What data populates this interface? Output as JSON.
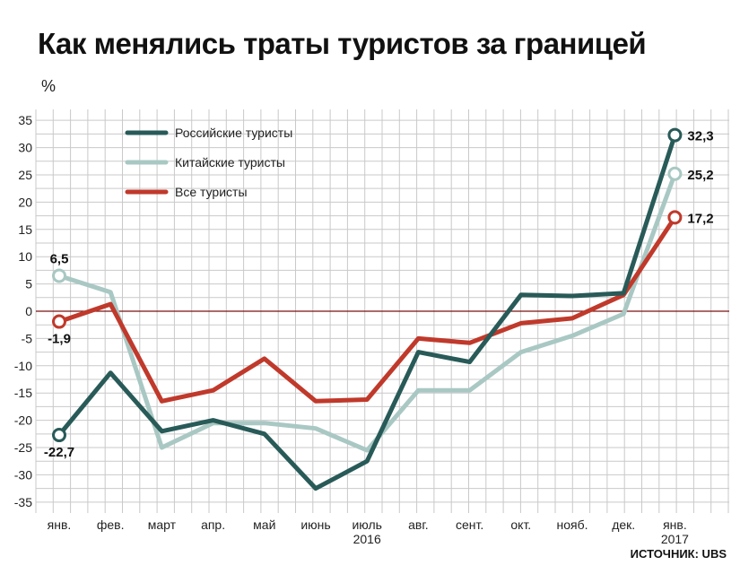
{
  "title": "Как менялись траты туристов за границей",
  "unit": "%",
  "source": "ИСТОЧНИК: UBS",
  "chart_data": {
    "type": "line",
    "ylim": [
      -37,
      37
    ],
    "yticks": [
      35,
      30,
      25,
      20,
      15,
      10,
      5,
      0,
      -5,
      -10,
      -15,
      -20,
      -25,
      -30,
      -35
    ],
    "categories": [
      "янв.",
      "фев.",
      "март",
      "апр.",
      "май",
      "июнь",
      "июль",
      "авг.",
      "сент.",
      "окт.",
      "нояб.",
      "дек.",
      "янв."
    ],
    "year_labels": [
      {
        "index": 6,
        "text": "2016"
      },
      {
        "index": 12,
        "text": "2017"
      }
    ],
    "grid": true,
    "legend_position": "top-left",
    "series": [
      {
        "name": "Российские туристы",
        "color": "#285a58",
        "values": [
          -22.7,
          -11.3,
          -22.0,
          -20.0,
          -22.5,
          -32.5,
          -27.5,
          -7.5,
          -9.3,
          3.0,
          2.8,
          3.3,
          32.3
        ]
      },
      {
        "name": "Китайские туристы",
        "color": "#a9c8c3",
        "values": [
          6.5,
          3.5,
          -25.0,
          -20.5,
          -20.5,
          -21.5,
          -25.5,
          -14.5,
          -14.5,
          -7.5,
          -4.5,
          -0.5,
          25.2
        ]
      },
      {
        "name": "Все туристы",
        "color": "#c0392b",
        "values": [
          -1.9,
          1.3,
          -16.5,
          -14.5,
          -8.7,
          -16.5,
          -16.2,
          -5.0,
          -5.8,
          -2.2,
          -1.3,
          3.0,
          17.2
        ]
      }
    ],
    "annotations": [
      {
        "series": 0,
        "index": 0,
        "text": "-22,7",
        "pos": "below"
      },
      {
        "series": 1,
        "index": 0,
        "text": "6,5",
        "pos": "above"
      },
      {
        "series": 2,
        "index": 0,
        "text": "-1,9",
        "pos": "below"
      },
      {
        "series": 0,
        "index": 12,
        "text": "32,3",
        "pos": "right"
      },
      {
        "series": 1,
        "index": 12,
        "text": "25,2",
        "pos": "right"
      },
      {
        "series": 2,
        "index": 12,
        "text": "17,2",
        "pos": "right"
      }
    ]
  }
}
